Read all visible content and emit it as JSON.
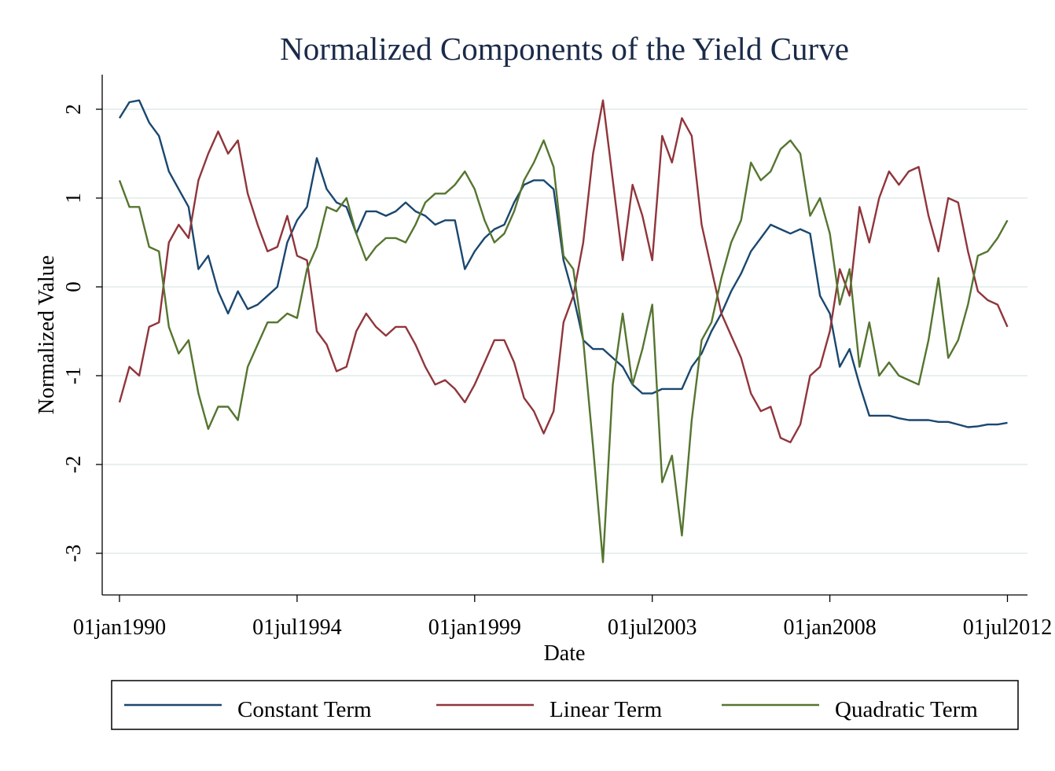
{
  "chart_data": {
    "type": "line",
    "title": "Normalized Components of the Yield Curve",
    "xlabel": "Date",
    "ylabel": "Normalized Value",
    "ylim": [
      -3.45,
      2.4
    ],
    "xlim": [
      "1989-08",
      "2012-09"
    ],
    "grid": true,
    "legend_placement": "bottom",
    "yticks": [
      -3,
      -2,
      -1,
      0,
      1,
      2
    ],
    "xticks": [
      {
        "date": "1990-01",
        "label": "01jan1990"
      },
      {
        "date": "1994-07",
        "label": "01jul1994"
      },
      {
        "date": "1999-01",
        "label": "01jan1999"
      },
      {
        "date": "2003-07",
        "label": "01jul2003"
      },
      {
        "date": "2008-01",
        "label": "01jan2008"
      },
      {
        "date": "2012-07",
        "label": "01jul2012"
      }
    ],
    "x": [
      "1990-01",
      "1990-04",
      "1990-07",
      "1990-10",
      "1991-01",
      "1991-04",
      "1991-07",
      "1991-10",
      "1992-01",
      "1992-04",
      "1992-07",
      "1992-10",
      "1993-01",
      "1993-04",
      "1993-07",
      "1993-10",
      "1994-01",
      "1994-04",
      "1994-07",
      "1994-10",
      "1995-01",
      "1995-04",
      "1995-07",
      "1995-10",
      "1996-01",
      "1996-04",
      "1996-07",
      "1996-10",
      "1997-01",
      "1997-04",
      "1997-07",
      "1997-10",
      "1998-01",
      "1998-04",
      "1998-07",
      "1998-10",
      "1999-01",
      "1999-04",
      "1999-07",
      "1999-10",
      "2000-01",
      "2000-04",
      "2000-07",
      "2000-10",
      "2001-01",
      "2001-04",
      "2001-07",
      "2001-10",
      "2002-01",
      "2002-04",
      "2002-07",
      "2002-10",
      "2003-01",
      "2003-04",
      "2003-07",
      "2003-10",
      "2004-01",
      "2004-04",
      "2004-07",
      "2004-10",
      "2005-01",
      "2005-04",
      "2005-07",
      "2005-10",
      "2006-01",
      "2006-04",
      "2006-07",
      "2006-10",
      "2007-01",
      "2007-04",
      "2007-07",
      "2007-10",
      "2008-01",
      "2008-04",
      "2008-07",
      "2008-10",
      "2009-01",
      "2009-04",
      "2009-07",
      "2009-10",
      "2010-01",
      "2010-04",
      "2010-07",
      "2010-10",
      "2011-01",
      "2011-04",
      "2011-07",
      "2011-10",
      "2012-01",
      "2012-04",
      "2012-07"
    ],
    "series": [
      {
        "name": "Constant Term",
        "color": "#1a476f",
        "values": [
          1.9,
          2.08,
          2.1,
          1.85,
          1.7,
          1.3,
          1.1,
          0.9,
          0.2,
          0.35,
          -0.05,
          -0.3,
          -0.05,
          -0.25,
          -0.2,
          -0.1,
          0.0,
          0.5,
          0.75,
          0.9,
          1.45,
          1.1,
          0.95,
          0.9,
          0.6,
          0.85,
          0.85,
          0.8,
          0.85,
          0.95,
          0.85,
          0.8,
          0.7,
          0.75,
          0.75,
          0.2,
          0.4,
          0.55,
          0.65,
          0.7,
          0.95,
          1.15,
          1.2,
          1.2,
          1.1,
          0.3,
          -0.1,
          -0.6,
          -0.7,
          -0.7,
          -0.8,
          -0.9,
          -1.1,
          -1.2,
          -1.2,
          -1.15,
          -1.15,
          -1.15,
          -0.9,
          -0.75,
          -0.5,
          -0.3,
          -0.05,
          0.15,
          0.4,
          0.55,
          0.7,
          0.65,
          0.6,
          0.65,
          0.6,
          -0.1,
          -0.3,
          -0.9,
          -0.7,
          -1.1,
          -1.45,
          -1.45,
          -1.45,
          -1.48,
          -1.5,
          -1.5,
          -1.5,
          -1.52,
          -1.52,
          -1.55,
          -1.58,
          -1.57,
          -1.55,
          -1.55,
          -1.53
        ]
      },
      {
        "name": "Linear Term",
        "color": "#90353b",
        "values": [
          -1.3,
          -0.9,
          -1.0,
          -0.45,
          -0.4,
          0.5,
          0.7,
          0.55,
          1.2,
          1.5,
          1.75,
          1.5,
          1.65,
          1.05,
          0.7,
          0.4,
          0.45,
          0.8,
          0.35,
          0.3,
          -0.5,
          -0.65,
          -0.95,
          -0.9,
          -0.5,
          -0.3,
          -0.45,
          -0.55,
          -0.45,
          -0.45,
          -0.65,
          -0.9,
          -1.1,
          -1.05,
          -1.15,
          -1.3,
          -1.1,
          -0.85,
          -0.6,
          -0.6,
          -0.85,
          -1.25,
          -1.4,
          -1.65,
          -1.4,
          -0.4,
          -0.1,
          0.5,
          1.5,
          2.1,
          1.2,
          0.3,
          1.15,
          0.8,
          0.3,
          1.7,
          1.4,
          1.9,
          1.7,
          0.7,
          0.2,
          -0.3,
          -0.55,
          -0.8,
          -1.2,
          -1.4,
          -1.35,
          -1.7,
          -1.75,
          -1.55,
          -1.0,
          -0.9,
          -0.5,
          0.2,
          -0.1,
          0.9,
          0.5,
          1.0,
          1.3,
          1.15,
          1.3,
          1.35,
          0.8,
          0.4,
          1.0,
          0.95,
          0.4,
          -0.05,
          -0.15,
          -0.2,
          -0.45
        ]
      },
      {
        "name": "Quadratic Term",
        "color": "#55752f",
        "values": [
          1.2,
          0.9,
          0.9,
          0.45,
          0.4,
          -0.45,
          -0.75,
          -0.6,
          -1.2,
          -1.6,
          -1.35,
          -1.35,
          -1.5,
          -0.9,
          -0.65,
          -0.4,
          -0.4,
          -0.3,
          -0.35,
          0.2,
          0.45,
          0.9,
          0.85,
          1.0,
          0.6,
          0.3,
          0.45,
          0.55,
          0.55,
          0.5,
          0.7,
          0.95,
          1.05,
          1.05,
          1.15,
          1.3,
          1.1,
          0.75,
          0.5,
          0.6,
          0.85,
          1.2,
          1.4,
          1.65,
          1.35,
          0.35,
          0.2,
          -0.6,
          -1.8,
          -3.1,
          -1.1,
          -0.3,
          -1.1,
          -0.7,
          -0.2,
          -2.2,
          -1.9,
          -2.8,
          -1.5,
          -0.6,
          -0.4,
          0.1,
          0.5,
          0.75,
          1.4,
          1.2,
          1.3,
          1.55,
          1.65,
          1.5,
          0.8,
          1.0,
          0.6,
          -0.2,
          0.2,
          -0.9,
          -0.4,
          -1.0,
          -0.85,
          -1.0,
          -1.05,
          -1.1,
          -0.6,
          0.1,
          -0.8,
          -0.6,
          -0.2,
          0.35,
          0.4,
          0.55,
          0.75
        ]
      }
    ]
  }
}
